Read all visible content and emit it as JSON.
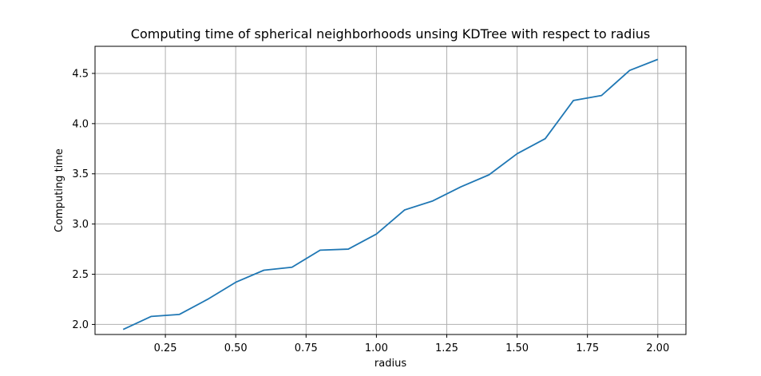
{
  "chart_data": {
    "type": "line",
    "title": "Computing time of spherical neighborhoods unsing KDTree with respect to radius",
    "xlabel": "radius",
    "ylabel": "Computing time",
    "xlim": [
      0.0,
      2.1
    ],
    "ylim": [
      1.9,
      4.77
    ],
    "grid": true,
    "x_ticks": [
      0.25,
      0.5,
      0.75,
      1.0,
      1.25,
      1.5,
      1.75,
      2.0
    ],
    "x_tick_labels": [
      "0.25",
      "0.50",
      "0.75",
      "1.00",
      "1.25",
      "1.50",
      "1.75",
      "2.00"
    ],
    "y_ticks": [
      2.0,
      2.5,
      3.0,
      3.5,
      4.0,
      4.5
    ],
    "y_tick_labels": [
      "2.0",
      "2.5",
      "3.0",
      "3.5",
      "4.0",
      "4.5"
    ],
    "series": [
      {
        "color": "#1f77b4",
        "x": [
          0.1,
          0.2,
          0.3,
          0.4,
          0.5,
          0.6,
          0.7,
          0.8,
          0.9,
          1.0,
          1.1,
          1.2,
          1.3,
          1.4,
          1.5,
          1.6,
          1.7,
          1.8,
          1.9,
          2.0
        ],
        "y": [
          1.95,
          2.08,
          2.1,
          2.25,
          2.42,
          2.54,
          2.57,
          2.74,
          2.75,
          2.9,
          3.14,
          3.23,
          3.37,
          3.49,
          3.7,
          3.85,
          4.23,
          4.28,
          4.53,
          4.64
        ]
      }
    ]
  }
}
